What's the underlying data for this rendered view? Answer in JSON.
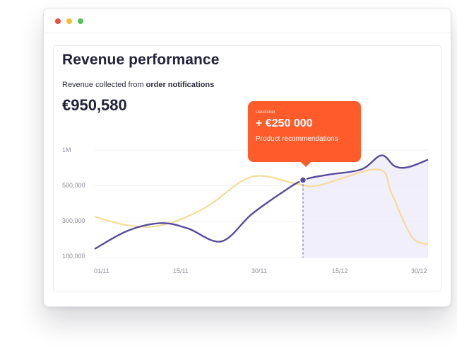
{
  "window": {
    "controls": [
      "close",
      "minimize",
      "maximize"
    ]
  },
  "card": {
    "title": "Revenue performance",
    "subtitle_prefix": "Revenue collected from ",
    "subtitle_bold": "order notifications",
    "total": "€950,580"
  },
  "tooltip": {
    "label": "December",
    "value": "+ €250 000",
    "description": "Product recommendations"
  },
  "colors": {
    "primary_line": "#574c9d",
    "secondary_line": "#f4dc98",
    "area_fill": "#eeeafb",
    "tooltip_bg": "#ff5b2b"
  },
  "chart_data": {
    "type": "line",
    "y_tick_labels": [
      "1M",
      "500,000",
      "300,000",
      "100,000"
    ],
    "x_tick_labels": [
      "01/11",
      "15/11",
      "30/11",
      "15/12",
      "30/12"
    ],
    "grid": true,
    "highlight_x": 0.625,
    "series": [
      {
        "role": "primary",
        "points": [
          [
            0.0,
            0.08
          ],
          [
            0.1,
            0.25
          ],
          [
            0.2,
            0.32
          ],
          [
            0.28,
            0.27
          ],
          [
            0.38,
            0.15
          ],
          [
            0.47,
            0.4
          ],
          [
            0.56,
            0.6
          ],
          [
            0.625,
            0.72
          ],
          [
            0.7,
            0.77
          ],
          [
            0.8,
            0.82
          ],
          [
            0.86,
            0.95
          ],
          [
            0.9,
            0.85
          ],
          [
            0.94,
            0.84
          ],
          [
            1.0,
            0.91
          ]
        ]
      },
      {
        "role": "secondary",
        "points": [
          [
            0.0,
            0.38
          ],
          [
            0.1,
            0.3
          ],
          [
            0.2,
            0.3
          ],
          [
            0.33,
            0.46
          ],
          [
            0.47,
            0.75
          ],
          [
            0.6,
            0.69
          ],
          [
            0.67,
            0.67
          ],
          [
            0.85,
            0.82
          ],
          [
            0.89,
            0.6
          ],
          [
            0.95,
            0.2
          ],
          [
            1.0,
            0.12
          ]
        ]
      }
    ]
  }
}
